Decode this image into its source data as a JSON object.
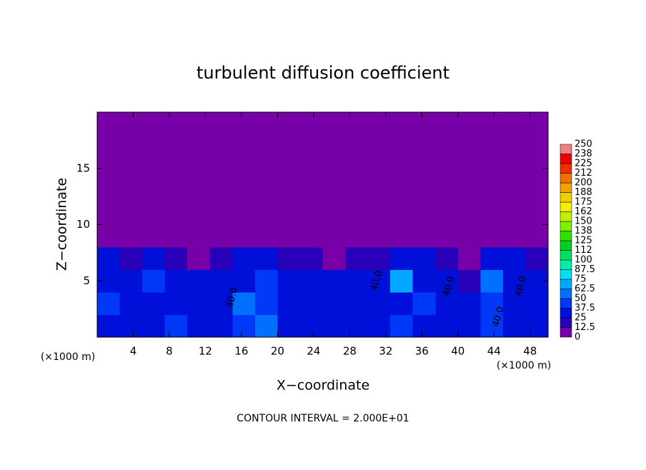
{
  "chart_data": {
    "type": "contour",
    "title": "turbulent diffusion coefficient",
    "x_label": "X−coordinate",
    "y_label": "Z−coordinate",
    "x_unit": "(×1000 m)",
    "y_unit": "(×1000 m)",
    "footer": "CONTOUR INTERVAL = 2.000E+01",
    "xlim": [
      0,
      50
    ],
    "ylim": [
      0,
      20
    ],
    "xticks": [
      4,
      8,
      12,
      16,
      20,
      24,
      28,
      32,
      36,
      40,
      44,
      48
    ],
    "yticks": [
      5,
      10,
      15
    ],
    "xbins": [
      0,
      2.5,
      5,
      7.5,
      10,
      12.5,
      15,
      17.5,
      20,
      22.5,
      25,
      27.5,
      30,
      32.5,
      35,
      37.5,
      40,
      42.5,
      45,
      47.5,
      50
    ],
    "ybins": [
      0,
      2,
      4,
      6,
      8,
      20
    ],
    "values": [
      [
        30,
        35,
        30,
        40,
        25,
        30,
        45,
        60,
        35,
        30,
        30,
        35,
        30,
        40,
        35,
        30,
        30,
        40,
        30,
        35
      ],
      [
        40,
        35,
        30,
        35,
        30,
        30,
        55,
        40,
        30,
        30,
        35,
        30,
        30,
        30,
        40,
        30,
        25,
        45,
        35,
        30
      ],
      [
        35,
        30,
        45,
        30,
        30,
        30,
        30,
        40,
        30,
        35,
        30,
        30,
        30,
        70,
        35,
        30,
        20,
        55,
        30,
        35
      ],
      [
        30,
        20,
        30,
        20,
        10,
        20,
        25,
        30,
        20,
        15,
        10,
        15,
        20,
        30,
        25,
        20,
        10,
        30,
        25,
        20
      ],
      [
        0,
        0,
        0,
        0,
        0,
        0,
        0,
        0,
        0,
        0,
        0,
        0,
        0,
        0,
        0,
        0,
        0,
        0,
        0,
        0
      ]
    ],
    "annotations": [
      {
        "text": "40.0",
        "x": 15,
        "y": 3.5
      },
      {
        "text": "40.0",
        "x": 31,
        "y": 5
      },
      {
        "text": "40.0",
        "x": 39,
        "y": 4.5
      },
      {
        "text": "40.0",
        "x": 47,
        "y": 4.5
      },
      {
        "text": "40.0",
        "x": 44.5,
        "y": 1.8
      }
    ],
    "colorbar": {
      "ticks": [
        0,
        12.5,
        25,
        37.5,
        50,
        62.5,
        75,
        87.5,
        100,
        {
          "value": 112.5,
          "label": "112"
        },
        125,
        {
          "value": 137.5,
          "label": "138"
        },
        150,
        {
          "value": 162.5,
          "label": "162"
        },
        175,
        {
          "value": 187.5,
          "label": "188"
        },
        200,
        {
          "value": 212.5,
          "label": "212"
        },
        225,
        {
          "value": 237.5,
          "label": "238"
        },
        250
      ],
      "colors": [
        "#7800a8",
        "#2800b8",
        "#0010d8",
        "#0038f8",
        "#0070ff",
        "#00a8ff",
        "#00e0f0",
        "#00f0a8",
        "#00e060",
        "#00d020",
        "#30e000",
        "#80f000",
        "#c0f000",
        "#f0f000",
        "#f0d000",
        "#f0a000",
        "#f07000",
        "#f03000",
        "#f00000",
        "#f08080"
      ]
    }
  }
}
